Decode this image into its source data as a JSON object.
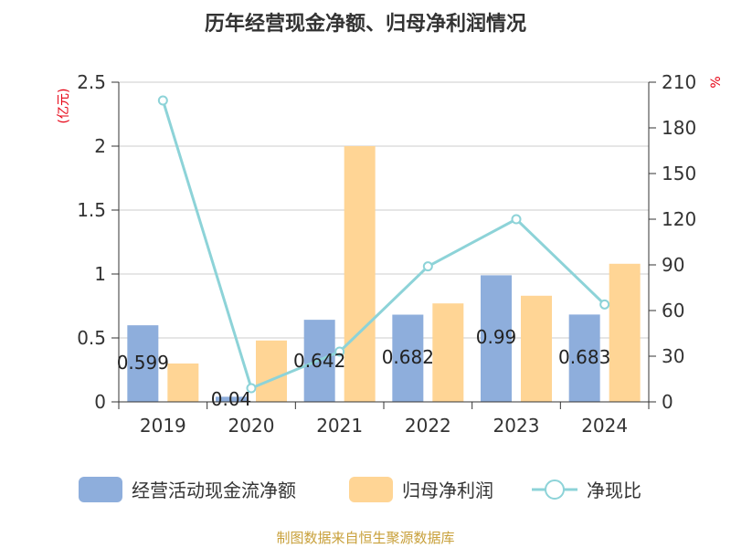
{
  "chart_data": {
    "type": "bar",
    "title": "历年经营现金净额、归母净利润情况",
    "categories": [
      "2019",
      "2020",
      "2021",
      "2022",
      "2023",
      "2024"
    ],
    "left_axis": {
      "unit": "(亿元)",
      "ylim": [
        0,
        2.5
      ],
      "ticks": [
        "0",
        "0.5",
        "1",
        "1.5",
        "2",
        "2.5"
      ]
    },
    "right_axis": {
      "unit": "%",
      "ylim": [
        0,
        210
      ],
      "ticks": [
        "0",
        "30",
        "60",
        "90",
        "120",
        "150",
        "180",
        "210"
      ]
    },
    "series": [
      {
        "name": "经营活动现金流净额",
        "type": "bar",
        "axis": "left",
        "color": "#8eaedc",
        "values": [
          0.599,
          0.04,
          0.642,
          0.682,
          0.99,
          0.683
        ],
        "labels": [
          "0.599",
          "0.04",
          "0.642",
          "0.682",
          "0.99",
          "0.683"
        ]
      },
      {
        "name": "归母净利润",
        "type": "bar",
        "axis": "left",
        "color": "#ffd595",
        "values": [
          0.3,
          0.48,
          2.0,
          0.77,
          0.83,
          1.08
        ]
      },
      {
        "name": "净现比",
        "type": "line",
        "axis": "right",
        "color": "#8dd3d8",
        "values": [
          198,
          9,
          33,
          89,
          120,
          64
        ]
      }
    ],
    "grid": true,
    "legend_position": "bottom"
  },
  "footer": {
    "source": "制图数据来自恒生聚源数据库"
  }
}
